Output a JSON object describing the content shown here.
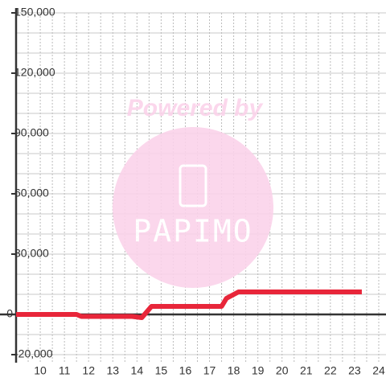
{
  "chart_data": {
    "type": "line",
    "watermark": {
      "top": "Powered by",
      "bottom": "PAPIMO"
    },
    "xlim": [
      9,
      24.3
    ],
    "ylim": [
      -24000,
      150000
    ],
    "xticks": [
      10,
      11,
      12,
      13,
      14,
      15,
      16,
      17,
      18,
      19,
      20,
      21,
      22,
      23,
      24
    ],
    "yticks": [
      {
        "value": 150000,
        "label": "150,000"
      },
      {
        "value": 120000,
        "label": "120,000"
      },
      {
        "value": 90000,
        "label": "90,000"
      },
      {
        "value": 60000,
        "label": "60,000"
      },
      {
        "value": 30000,
        "label": "30,000"
      },
      0,
      {
        "value": -20000,
        "label": "-20,000"
      }
    ],
    "ygrid": [
      -20000,
      -10000,
      10000,
      20000,
      30000,
      40000,
      50000,
      60000,
      70000,
      80000,
      90000,
      100000,
      110000,
      120000,
      130000,
      140000,
      150000
    ],
    "xgrid": [
      9.5,
      10,
      10.5,
      11,
      11.5,
      12,
      12.5,
      13,
      13.5,
      14,
      14.5,
      15,
      15.5,
      16,
      16.5,
      17,
      17.5,
      18,
      18.5,
      19,
      19.5,
      20,
      20.5,
      21,
      21.5,
      22,
      22.5,
      23,
      23.5,
      24
    ],
    "grid": true,
    "series": [
      {
        "color": "#e8263a",
        "x": [
          9,
          11.5,
          11.7,
          13.8,
          14.2,
          14.6,
          17.5,
          17.7,
          18.2,
          23.3
        ],
        "values": [
          0,
          0,
          -1000,
          -1000,
          -1600,
          4000,
          4000,
          8000,
          11200,
          11200
        ]
      }
    ]
  }
}
